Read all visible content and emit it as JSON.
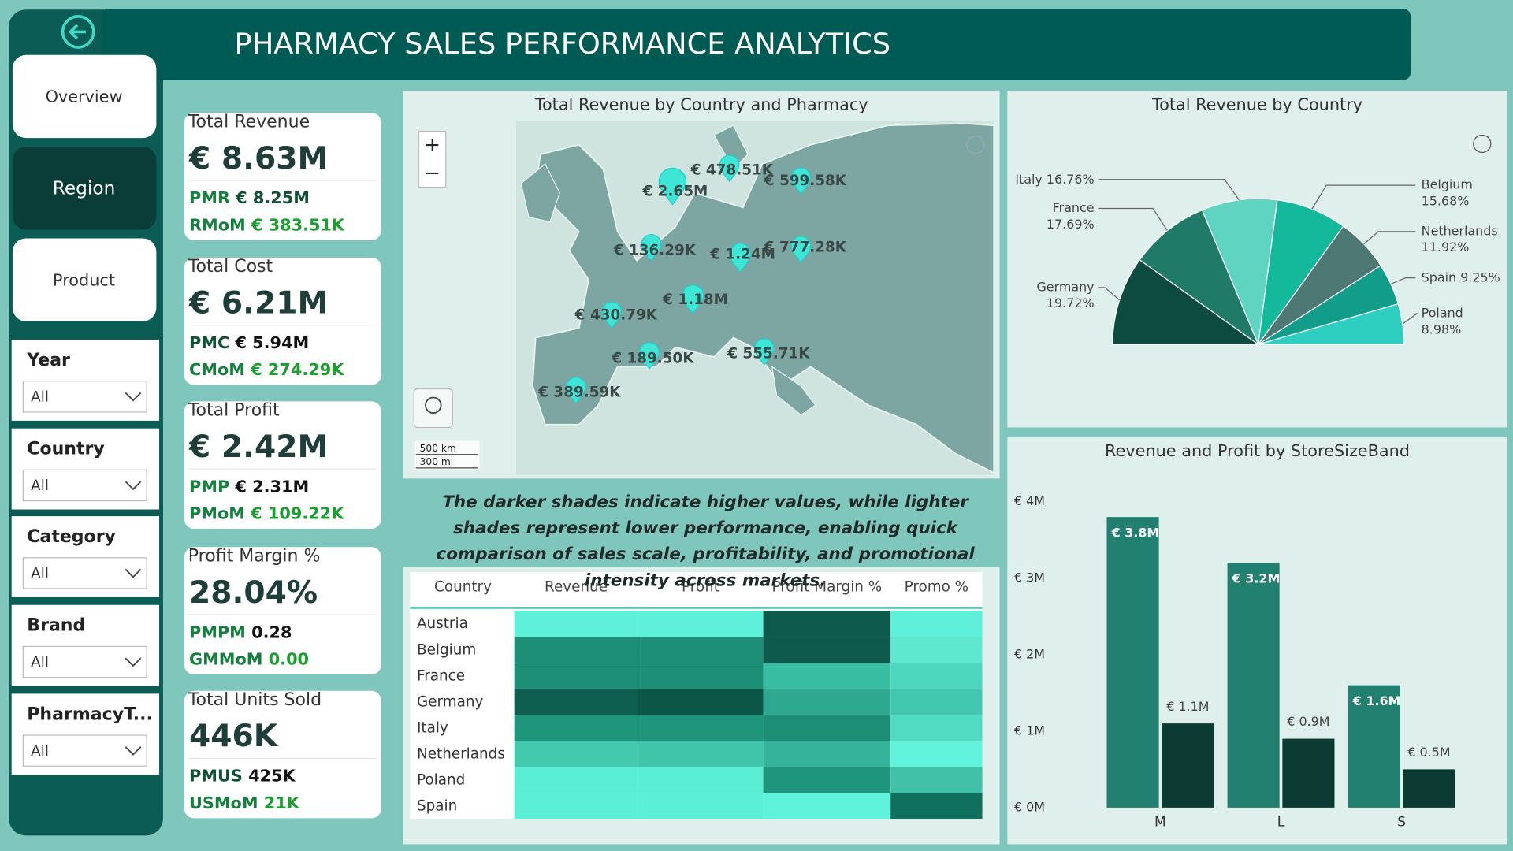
{
  "header": {
    "title": "PHARMACY SALES PERFORMANCE ANALYTICS"
  },
  "nav": [
    {
      "label": "Overview"
    },
    {
      "label": "Region",
      "selected": true
    },
    {
      "label": "Product"
    }
  ],
  "filters": [
    {
      "label": "Year",
      "value": "All"
    },
    {
      "label": "Country",
      "value": "All"
    },
    {
      "label": "Category",
      "value": "All"
    },
    {
      "label": "Brand",
      "value": "All"
    },
    {
      "label": "PharmacyT...",
      "value": "All"
    }
  ],
  "kpis": [
    {
      "title": "Total Revenue",
      "value": "€ 8.63M",
      "lines": [
        {
          "label": "PMR",
          "value": "€ 8.25M",
          "label_color": "#15803d",
          "value_color": "#0f5132"
        },
        {
          "label": "RMoM",
          "value": "€ 383.51K",
          "label_color": "#15803d",
          "value_color": "#1a9e2e"
        }
      ]
    },
    {
      "title": "Total Cost",
      "value": "€ 6.21M",
      "lines": [
        {
          "label": "PMC",
          "value": "€ 5.94M",
          "label_color": "#0f5132",
          "value_color": "#111111"
        },
        {
          "label": "CMoM",
          "value": "€ 274.29K",
          "label_color": "#15803d",
          "value_color": "#1a9e2e"
        }
      ]
    },
    {
      "title": "Total Profit",
      "value": "€ 2.42M",
      "lines": [
        {
          "label": "PMP",
          "value": "€ 2.31M",
          "label_color": "#15803d",
          "value_color": "#111111"
        },
        {
          "label": "PMoM",
          "value": "€ 109.22K",
          "label_color": "#15803d",
          "value_color": "#1a9e2e"
        }
      ]
    },
    {
      "title": "Profit Margin %",
      "value": "28.04%",
      "lines": [
        {
          "label": "PMPM",
          "value": "0.28",
          "label_color": "#15803d",
          "value_color": "#111111"
        },
        {
          "label": "GMMoM",
          "value": "0.00",
          "label_color": "#15803d",
          "value_color": "#1a9e2e"
        }
      ]
    },
    {
      "title": "Total Units Sold",
      "value": "446K",
      "lines": [
        {
          "label": "PMUS",
          "value": "425K",
          "label_color": "#0f5132",
          "value_color": "#111111"
        },
        {
          "label": "USMoM",
          "value": "21K",
          "label_color": "#15803d",
          "value_color": "#1a9e2e"
        }
      ]
    }
  ],
  "map": {
    "title": "Total Revenue by Country and Pharmacy",
    "labels": [
      "€ 2.65M",
      "€ 478.51K",
      "€ 599.58K",
      "€ 136.29K",
      "€ 1.24M",
      "€ 777.28K",
      "€ 1.18M",
      "€ 430.79K",
      "€ 189.50K",
      "€ 555.71K",
      "€ 389.59K"
    ],
    "scale": [
      "500 km",
      "300 mi"
    ],
    "zoom_in": "+",
    "zoom_out": "−"
  },
  "note": "The darker shades indicate higher values, while lighter shades represent lower performance, enabling quick comparison of sales scale, profitability, and promotional intensity across markets.",
  "table": {
    "columns": [
      "Country",
      "Revenue",
      "Profit",
      "Profit Margin %",
      "Promo %"
    ],
    "rows": [
      "Austria",
      "Belgium",
      "France",
      "Germany",
      "Italy",
      "Netherlands",
      "Poland",
      "Spain"
    ],
    "cell_colors": [
      [
        "#5ef0d8",
        "#5ef0d8",
        "#0e5a4c",
        "#5ef0d8"
      ],
      [
        "#1e8f77",
        "#1e8f77",
        "#0e5a4c",
        "#5fe8d0"
      ],
      [
        "#1e8f77",
        "#1e8f77",
        "#38bca2",
        "#4dd7bf"
      ],
      [
        "#0e5f50",
        "#0c5648",
        "#2ea98f",
        "#42c8ae"
      ],
      [
        "#1f957c",
        "#1f957c",
        "#1e8f77",
        "#50dcc3"
      ],
      [
        "#43c9ae",
        "#40c4aa",
        "#35b49b",
        "#62f3dc"
      ],
      [
        "#59eed4",
        "#59eed4",
        "#1f957c",
        "#3fc2a8"
      ],
      [
        "#5bf0d6",
        "#5bf0d6",
        "#60f3dc",
        "#10705e"
      ]
    ]
  },
  "chart_data": [
    {
      "type": "pie",
      "title": "Total Revenue by Country",
      "categories": [
        "Germany",
        "France",
        "Italy",
        "Belgium",
        "Netherlands",
        "Spain",
        "Poland"
      ],
      "values": [
        19.72,
        17.69,
        16.76,
        15.68,
        11.92,
        9.25,
        8.98
      ],
      "value_labels": [
        "19.72%",
        "17.69%",
        "16.76%",
        "15.68%",
        "11.92%",
        "9.25%",
        "8.98%"
      ],
      "colors": [
        "#0d4a3f",
        "#1f7a68",
        "#5fd4c0",
        "#14b89a",
        "#4d7873",
        "#129c8a",
        "#2ecfc0"
      ],
      "half": true
    },
    {
      "type": "bar",
      "title": "Revenue and Profit by StoreSizeBand",
      "categories": [
        "M",
        "L",
        "S"
      ],
      "series": [
        {
          "color": "#218070",
          "values": [
            3.8,
            3.2,
            1.6
          ],
          "value_labels": [
            "€ 3.8M",
            "€ 3.2M",
            "€ 1.6M"
          ]
        },
        {
          "color": "#0b3b32",
          "values": [
            1.1,
            0.9,
            0.5
          ],
          "value_labels": [
            "€ 1.1M",
            "€ 0.9M",
            "€ 0.5M"
          ]
        }
      ],
      "ylim": [
        0,
        4
      ],
      "yticks": [
        {
          "value": 0,
          "label": "€ 0M"
        },
        {
          "value": 1,
          "label": "€ 1M"
        },
        {
          "value": 2,
          "label": "€ 2M"
        },
        {
          "value": 3,
          "label": "€ 3M"
        },
        {
          "value": 4,
          "label": "€ 4M"
        }
      ],
      "grid": false
    }
  ]
}
